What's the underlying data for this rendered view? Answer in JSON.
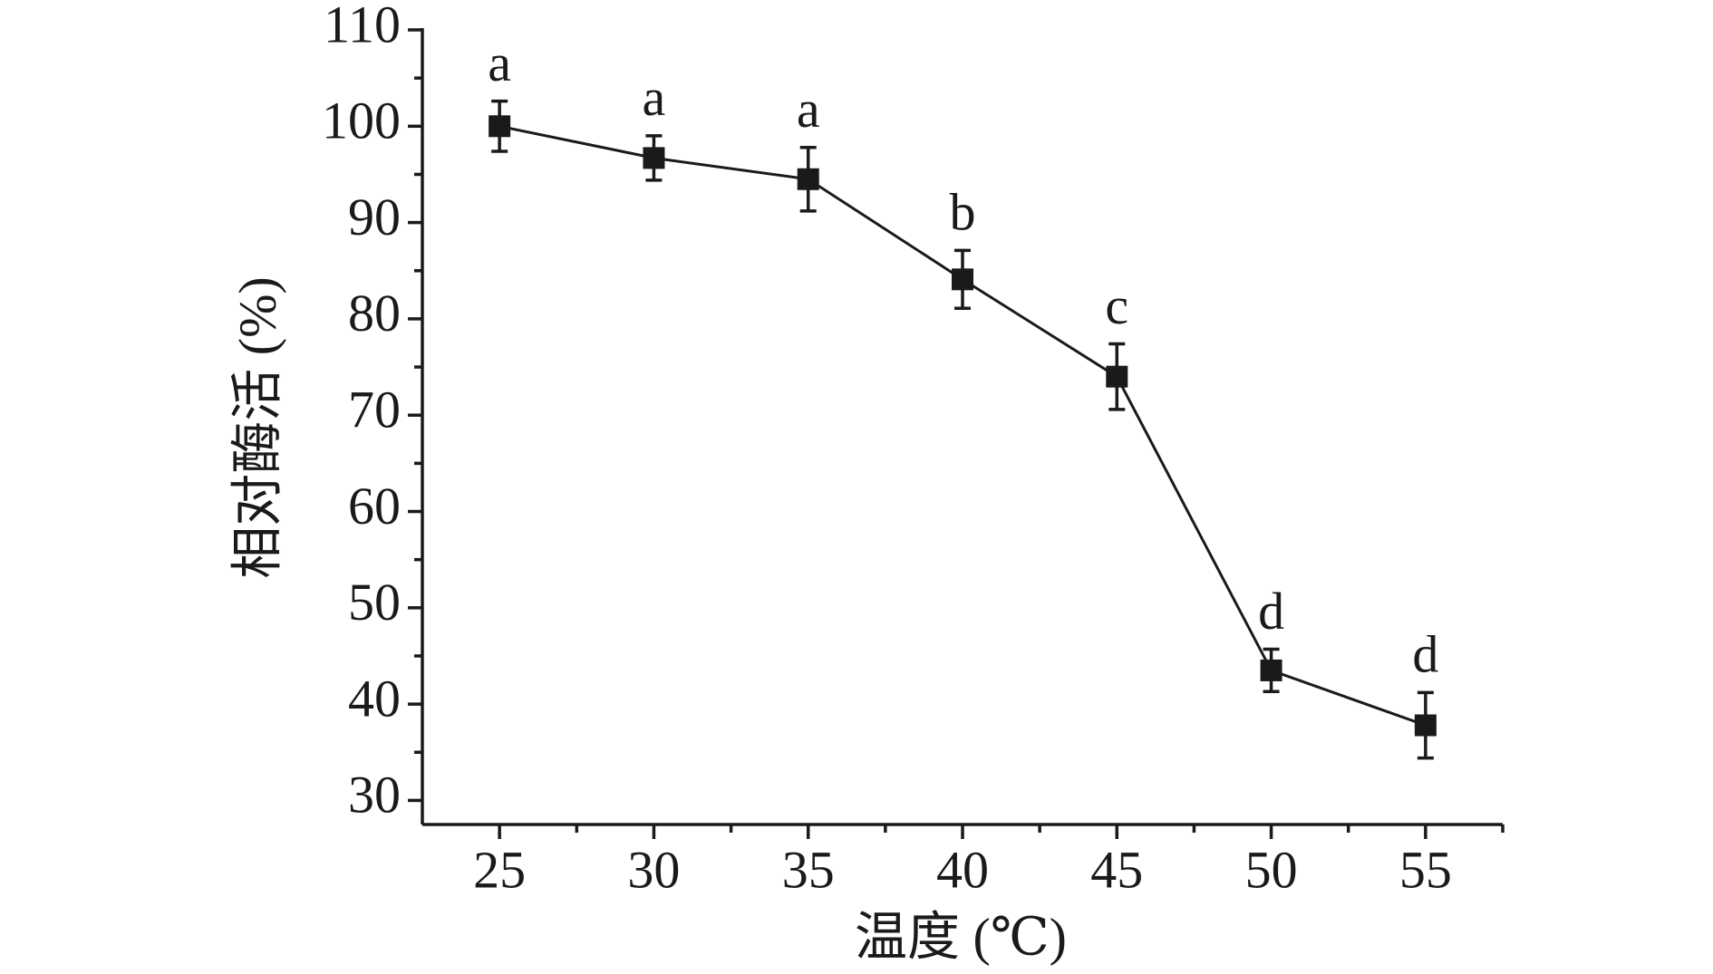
{
  "chart_data": {
    "type": "line",
    "xlabel": "温度 (℃)",
    "ylabel": "相对酶活 (%)",
    "x": [
      25,
      30,
      35,
      40,
      45,
      50,
      55
    ],
    "values": [
      100,
      96.7,
      94.5,
      84.1,
      74,
      43.5,
      37.8
    ],
    "errors": [
      2.6,
      2.3,
      3.3,
      3.0,
      3.4,
      2.2,
      3.4
    ],
    "significance_labels": [
      "a",
      "a",
      "a",
      "b",
      "c",
      "d",
      "d"
    ],
    "color": "#1a1a1a",
    "xlim": [
      22.5,
      57.5
    ],
    "xticks": [
      25,
      30,
      35,
      40,
      45,
      50,
      55
    ],
    "xminorticks": [
      27.5,
      32.5,
      37.5,
      42.5,
      47.5,
      52.5,
      57.5
    ],
    "ylim": [
      27.5,
      110
    ],
    "yticks": [
      30,
      40,
      50,
      60,
      70,
      80,
      90,
      100,
      110
    ],
    "yminorticks": [
      35,
      45,
      55,
      65,
      75,
      85,
      95,
      105
    ]
  }
}
